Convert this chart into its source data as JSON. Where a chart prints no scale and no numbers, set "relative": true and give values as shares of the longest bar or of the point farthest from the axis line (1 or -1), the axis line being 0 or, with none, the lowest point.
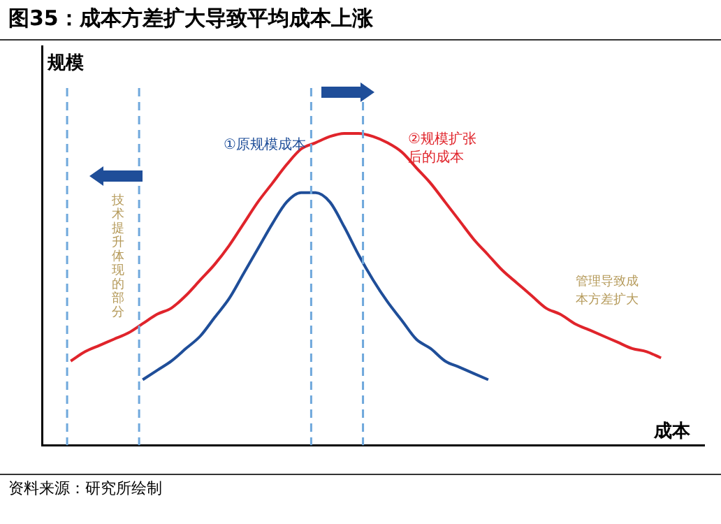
{
  "chart_data": {
    "type": "line",
    "title": "图35：成本方差扩大导致平均成本上涨",
    "xlabel": "成本",
    "ylabel": "规模",
    "relative": true,
    "grid": false,
    "legend": false,
    "marker": "none",
    "line_style": "solid",
    "categories": [
      null,
      null,
      null,
      null,
      null,
      null,
      null,
      null,
      null,
      null,
      null,
      null,
      null,
      null,
      null,
      null,
      null,
      null,
      null,
      null,
      null,
      null,
      null,
      null,
      null,
      null,
      null,
      null,
      null,
      null,
      null,
      null,
      null,
      null,
      null,
      null,
      null,
      null,
      null,
      null,
      null,
      null,
      null,
      null,
      null,
      null,
      null
    ],
    "series": [
      {
        "color": "#e0242b",
        "values": [
          null,
          null,
          0.27,
          0.3,
          0.32,
          0.34,
          0.36,
          0.39,
          0.42,
          0.44,
          0.48,
          0.53,
          0.58,
          0.64,
          0.71,
          0.78,
          0.84,
          0.9,
          0.95,
          0.97,
          0.99,
          1,
          1,
          0.99,
          0.97,
          0.94,
          0.89,
          0.84,
          0.78,
          0.72,
          0.66,
          0.61,
          0.56,
          0.52,
          0.48,
          0.44,
          0.42,
          0.39,
          0.37,
          0.35,
          0.33,
          0.31,
          0.3,
          0.28,
          null,
          null,
          null
        ]
      },
      {
        "color": "#1f4e99",
        "values": [
          null,
          null,
          null,
          null,
          null,
          null,
          null,
          0.21,
          0.24,
          0.27,
          0.31,
          0.35,
          0.41,
          0.47,
          0.55,
          0.63,
          0.71,
          0.78,
          0.81,
          0.81,
          0.78,
          0.7,
          0.61,
          0.53,
          0.46,
          0.4,
          0.34,
          0.31,
          0.27,
          0.25,
          0.23,
          0.21,
          null,
          null,
          null,
          null,
          null,
          null,
          null,
          null,
          null,
          null,
          null,
          null,
          null,
          null,
          null
        ]
      }
    ],
    "annotations": [
      "①原规模成本",
      "②规模扩张后的成本",
      "技术提升体现的部分",
      "管理导致成本方差扩大",
      "资料来源：研究所绘制"
    ]
  }
}
